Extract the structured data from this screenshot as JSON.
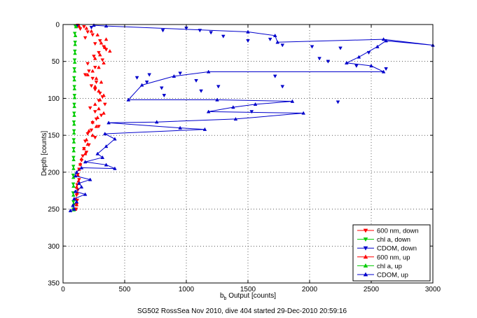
{
  "footer": {
    "caption": "SG502 RossSea Nov 2010, dive 404 started 29-Dec-2010 20:59:16"
  },
  "chart_data": {
    "type": "scatter",
    "title": "",
    "xlabel_main": "b",
    "xlabel_sub": "b",
    "xlabel_rest": " Output [counts]",
    "ylabel": "Depth [counts]",
    "xlim": [
      0,
      3000
    ],
    "ylim": [
      0,
      350
    ],
    "y_reversed": true,
    "grid": true,
    "legend_position": "bottom-right",
    "x_ticks": [
      0,
      500,
      1000,
      1500,
      2000,
      2500,
      3000
    ],
    "y_ticks": [
      0,
      50,
      100,
      150,
      200,
      250,
      300,
      350
    ],
    "series": [
      {
        "name": "600 nm, down",
        "color": "#ff0000",
        "marker": "triangle-down",
        "line": false,
        "points": [
          [
            120,
            1
          ],
          [
            170,
            3
          ],
          [
            140,
            6
          ],
          [
            200,
            10
          ],
          [
            240,
            14
          ],
          [
            180,
            18
          ],
          [
            300,
            22
          ],
          [
            260,
            26
          ],
          [
            330,
            30
          ],
          [
            350,
            34
          ],
          [
            290,
            38
          ],
          [
            250,
            43
          ],
          [
            320,
            48
          ],
          [
            200,
            53
          ],
          [
            260,
            58
          ],
          [
            210,
            63
          ],
          [
            180,
            68
          ],
          [
            240,
            73
          ],
          [
            270,
            78
          ],
          [
            230,
            83
          ],
          [
            260,
            88
          ],
          [
            300,
            93
          ],
          [
            320,
            98
          ],
          [
            290,
            103
          ],
          [
            340,
            108
          ],
          [
            220,
            113
          ],
          [
            260,
            118
          ],
          [
            310,
            123
          ],
          [
            270,
            128
          ],
          [
            240,
            133
          ],
          [
            290,
            138
          ],
          [
            230,
            143
          ],
          [
            200,
            148
          ],
          [
            260,
            153
          ],
          [
            180,
            158
          ],
          [
            210,
            163
          ],
          [
            170,
            168
          ],
          [
            190,
            173
          ],
          [
            160,
            178
          ],
          [
            150,
            184
          ],
          [
            140,
            190
          ],
          [
            130,
            196
          ],
          [
            120,
            203
          ],
          [
            130,
            210
          ],
          [
            115,
            217
          ],
          [
            120,
            224
          ],
          [
            110,
            231
          ],
          [
            115,
            238
          ],
          [
            110,
            244
          ],
          [
            105,
            250
          ]
        ]
      },
      {
        "name": "chl a, down",
        "color": "#00cc00",
        "marker": "triangle-down",
        "line": false,
        "points": [
          [
            100,
            2
          ],
          [
            95,
            12
          ],
          [
            98,
            24
          ],
          [
            96,
            36
          ],
          [
            94,
            48
          ],
          [
            92,
            60
          ],
          [
            90,
            72
          ],
          [
            92,
            84
          ],
          [
            93,
            96
          ],
          [
            91,
            108
          ],
          [
            90,
            120
          ],
          [
            88,
            132
          ],
          [
            89,
            144
          ],
          [
            87,
            156
          ],
          [
            86,
            168
          ],
          [
            85,
            180
          ],
          [
            84,
            192
          ],
          [
            82,
            204
          ],
          [
            83,
            216
          ],
          [
            82,
            228
          ],
          [
            84,
            240
          ],
          [
            85,
            250
          ]
        ]
      },
      {
        "name": "CDOM, down",
        "color": "#0000cc",
        "marker": "triangle-down",
        "line": false,
        "points": [
          [
            120,
            2
          ],
          [
            230,
            4
          ],
          [
            810,
            8
          ],
          [
            1000,
            5
          ],
          [
            1110,
            8
          ],
          [
            1200,
            11
          ],
          [
            1300,
            16
          ],
          [
            1680,
            20
          ],
          [
            1500,
            22
          ],
          [
            1780,
            28
          ],
          [
            2020,
            30
          ],
          [
            2250,
            32
          ],
          [
            2480,
            38
          ],
          [
            2080,
            46
          ],
          [
            2150,
            50
          ],
          [
            2380,
            56
          ],
          [
            1720,
            70
          ],
          [
            1080,
            76
          ],
          [
            2620,
            60
          ],
          [
            950,
            66
          ],
          [
            680,
            78
          ],
          [
            800,
            86
          ],
          [
            1120,
            90
          ],
          [
            820,
            96
          ],
          [
            2230,
            105
          ],
          [
            1530,
            118
          ],
          [
            1260,
            84
          ],
          [
            700,
            68
          ],
          [
            1780,
            84
          ],
          [
            600,
            72
          ]
        ]
      },
      {
        "name": "600 nm, up",
        "color": "#ff0000",
        "marker": "triangle-up",
        "line": false,
        "points": [
          [
            130,
            2
          ],
          [
            190,
            5
          ],
          [
            230,
            9
          ],
          [
            280,
            14
          ],
          [
            350,
            20
          ],
          [
            310,
            25
          ],
          [
            340,
            31
          ],
          [
            380,
            36
          ],
          [
            300,
            41
          ],
          [
            260,
            46
          ],
          [
            330,
            52
          ],
          [
            290,
            58
          ],
          [
            240,
            63
          ],
          [
            200,
            68
          ],
          [
            270,
            73
          ],
          [
            310,
            78
          ],
          [
            260,
            84
          ],
          [
            290,
            90
          ],
          [
            330,
            96
          ],
          [
            300,
            102
          ],
          [
            260,
            108
          ],
          [
            290,
            114
          ],
          [
            330,
            120
          ],
          [
            280,
            126
          ],
          [
            240,
            132
          ],
          [
            270,
            138
          ],
          [
            210,
            144
          ],
          [
            240,
            150
          ],
          [
            190,
            156
          ],
          [
            200,
            162
          ],
          [
            170,
            168
          ],
          [
            180,
            175
          ],
          [
            150,
            182
          ],
          [
            140,
            189
          ],
          [
            130,
            196
          ],
          [
            120,
            204
          ],
          [
            125,
            212
          ],
          [
            110,
            220
          ],
          [
            115,
            228
          ],
          [
            105,
            236
          ],
          [
            110,
            244
          ],
          [
            100,
            250
          ]
        ]
      },
      {
        "name": "chl a, up",
        "color": "#00cc00",
        "marker": "triangle-up",
        "line": false,
        "points": [
          [
            105,
            3
          ],
          [
            100,
            15
          ],
          [
            98,
            27
          ],
          [
            97,
            39
          ],
          [
            95,
            51
          ],
          [
            94,
            63
          ],
          [
            92,
            75
          ],
          [
            93,
            87
          ],
          [
            94,
            99
          ],
          [
            92,
            111
          ],
          [
            91,
            123
          ],
          [
            90,
            135
          ],
          [
            89,
            147
          ],
          [
            88,
            159
          ],
          [
            87,
            171
          ],
          [
            86,
            183
          ],
          [
            85,
            195
          ],
          [
            84,
            207
          ],
          [
            85,
            219
          ],
          [
            84,
            231
          ],
          [
            86,
            243
          ],
          [
            88,
            251
          ]
        ]
      },
      {
        "name": "CDOM, up",
        "color": "#0000cc",
        "marker": "triangle-up",
        "line": true,
        "points": [
          [
            250,
            1
          ],
          [
            350,
            2
          ],
          [
            1500,
            10
          ],
          [
            1720,
            15
          ],
          [
            1740,
            24
          ],
          [
            2600,
            20
          ],
          [
            3000,
            28
          ],
          [
            2620,
            22
          ],
          [
            2550,
            30
          ],
          [
            2400,
            44
          ],
          [
            2300,
            52
          ],
          [
            2500,
            56
          ],
          [
            2600,
            64
          ],
          [
            1180,
            64
          ],
          [
            900,
            70
          ],
          [
            640,
            82
          ],
          [
            530,
            102
          ],
          [
            1250,
            102
          ],
          [
            1860,
            104
          ],
          [
            1560,
            108
          ],
          [
            1380,
            112
          ],
          [
            1180,
            118
          ],
          [
            1950,
            120
          ],
          [
            1400,
            128
          ],
          [
            760,
            132
          ],
          [
            370,
            133
          ],
          [
            950,
            140
          ],
          [
            1150,
            142
          ],
          [
            340,
            148
          ],
          [
            420,
            155
          ],
          [
            350,
            165
          ],
          [
            280,
            175
          ],
          [
            320,
            180
          ],
          [
            180,
            186
          ],
          [
            350,
            190
          ],
          [
            420,
            195
          ],
          [
            150,
            194
          ],
          [
            110,
            200
          ],
          [
            100,
            205
          ],
          [
            220,
            210
          ],
          [
            130,
            215
          ],
          [
            150,
            220
          ],
          [
            100,
            226
          ],
          [
            180,
            230
          ],
          [
            90,
            236
          ],
          [
            110,
            240
          ],
          [
            80,
            245
          ],
          [
            90,
            250
          ],
          [
            60,
            252
          ]
        ]
      }
    ]
  }
}
